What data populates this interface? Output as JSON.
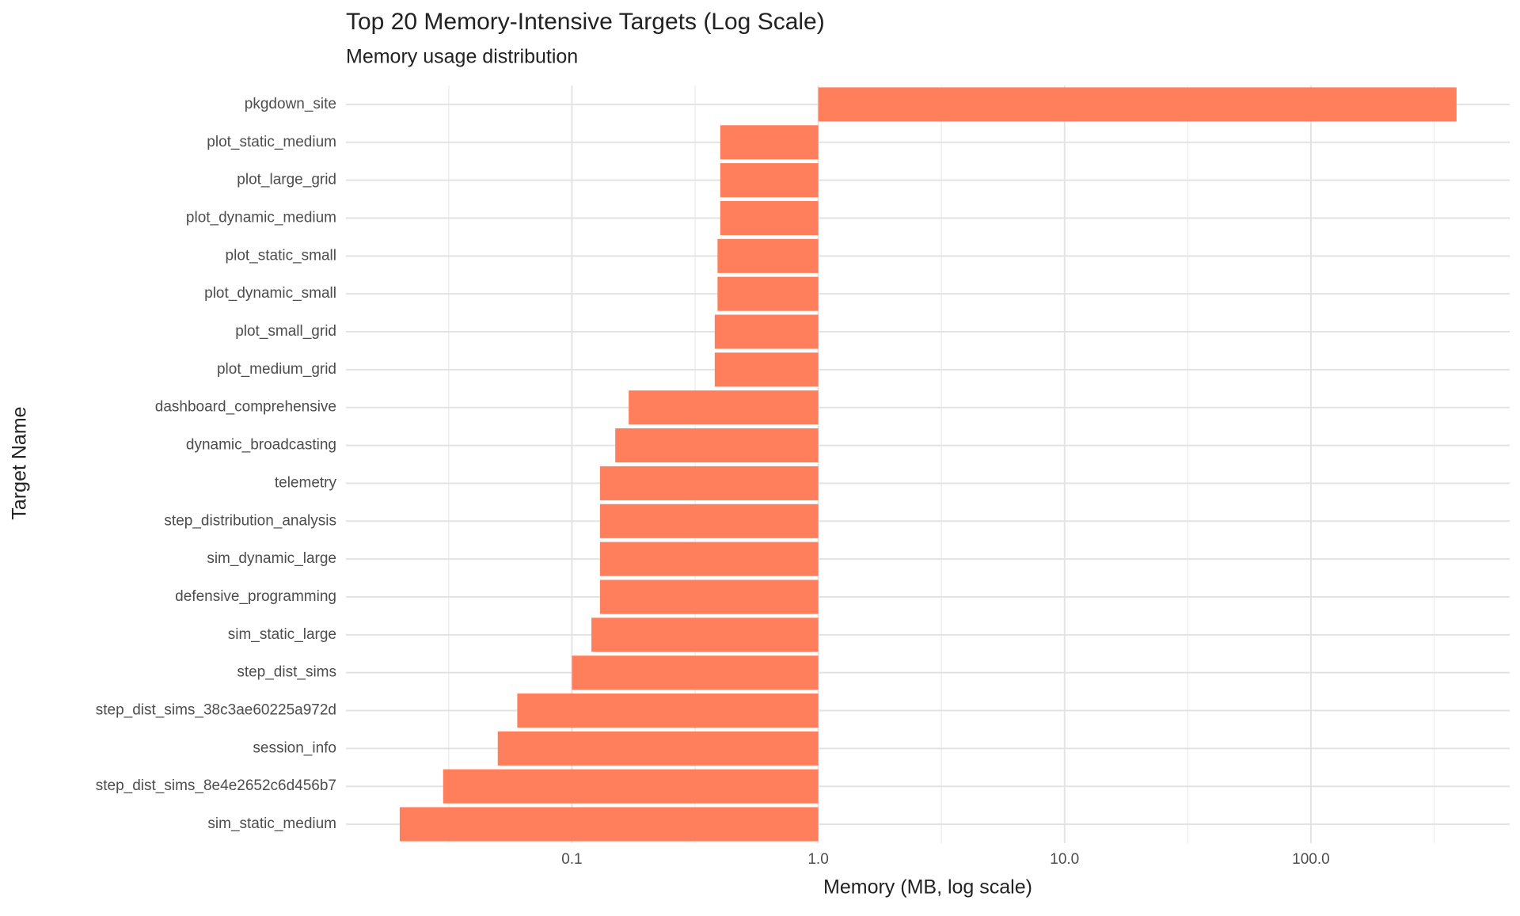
{
  "chart_data": {
    "type": "bar",
    "orientation": "horizontal",
    "title": "Top 20 Memory-Intensive Targets (Log Scale)",
    "subtitle": "Memory usage distribution",
    "x_label": "Memory (MB, log scale)",
    "y_label": "Target Name",
    "categories": [
      "pkgdown_site",
      "plot_static_medium",
      "plot_large_grid",
      "plot_dynamic_medium",
      "plot_static_small",
      "plot_dynamic_small",
      "plot_small_grid",
      "plot_medium_grid",
      "dashboard_comprehensive",
      "dynamic_broadcasting",
      "telemetry",
      "step_distribution_analysis",
      "sim_dynamic_large",
      "defensive_programming",
      "sim_static_large",
      "step_dist_sims",
      "step_dist_sims_38c3ae60225a972d",
      "session_info",
      "step_dist_sims_8e4e2652c6d456b7",
      "sim_static_medium"
    ],
    "values": [
      390,
      0.4,
      0.4,
      0.4,
      0.39,
      0.39,
      0.38,
      0.38,
      0.17,
      0.15,
      0.13,
      0.13,
      0.13,
      0.13,
      0.12,
      0.1,
      0.06,
      0.05,
      0.03,
      0.02
    ],
    "color": "#ff7f5c",
    "log_x": true,
    "xlim": [
      0.0121,
      641
    ],
    "xticks": [
      {
        "value": 0.1,
        "label": "0.1"
      },
      {
        "value": 1,
        "label": "1.0"
      },
      {
        "value": 10,
        "label": "10.0"
      },
      {
        "value": 100,
        "label": "100.0"
      }
    ],
    "grid": true,
    "minor_grid": true
  }
}
